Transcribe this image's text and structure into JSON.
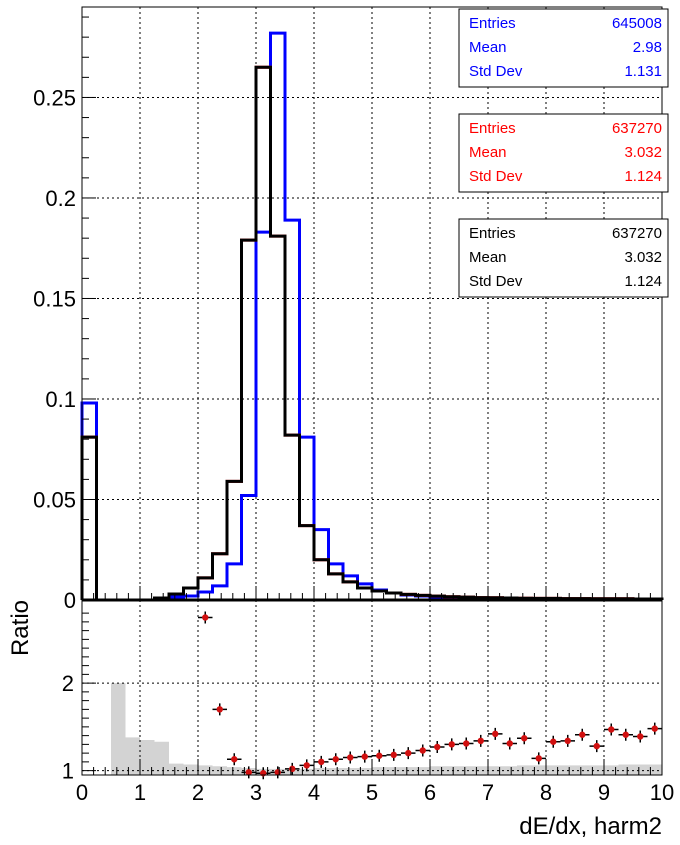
{
  "chart_data": [
    {
      "type": "step-histogram",
      "panel": "top",
      "x_range": [
        0,
        10
      ],
      "y_range": [
        0,
        0.295
      ],
      "y_ticks": [
        "0",
        "0.05",
        "0.1",
        "0.15",
        "0.2",
        "0.25"
      ],
      "y_tick_values": [
        0,
        0.05,
        0.1,
        0.15,
        0.2,
        0.25
      ],
      "bin_width": 0.25,
      "grid": true,
      "series": [
        {
          "color": "#0000ff",
          "values": [
            0.098,
            0.0,
            0.0,
            0.0,
            0.0,
            0.0005,
            0.0015,
            0.002,
            0.004,
            0.007,
            0.018,
            0.052,
            0.183,
            0.282,
            0.189,
            0.081,
            0.035,
            0.018,
            0.012,
            0.008,
            0.005,
            0.0035,
            0.0025,
            0.002,
            0.0015,
            0.0012,
            0.001,
            0.0008,
            0.0007,
            0.0006,
            0.0005,
            0.0004,
            0.0004,
            0.0003,
            0.0003,
            0.0003,
            0.0002,
            0.0002,
            0.0002,
            0.0002
          ],
          "stats": {
            "label_entries": "Entries",
            "label_mean": "Mean",
            "label_std": "Std Dev",
            "entries": "645008",
            "mean": "2.98",
            "std": "1.131"
          }
        },
        {
          "color": "#ff0000",
          "values": [
            0.081,
            0.0,
            0.0,
            0.0,
            0.0,
            0.001,
            0.003,
            0.006,
            0.011,
            0.023,
            0.059,
            0.179,
            0.265,
            0.181,
            0.082,
            0.037,
            0.02,
            0.013,
            0.009,
            0.006,
            0.0045,
            0.0035,
            0.0028,
            0.0023,
            0.0019,
            0.0016,
            0.0014,
            0.0012,
            0.0011,
            0.001,
            0.0009,
            0.0008,
            0.0008,
            0.0007,
            0.0007,
            0.0006,
            0.0006,
            0.0006,
            0.0005,
            0.0005
          ],
          "stats": {
            "label_entries": "Entries",
            "label_mean": "Mean",
            "label_std": "Std Dev",
            "entries": "637270",
            "mean": "3.032",
            "std": "1.124"
          }
        },
        {
          "color": "#000000",
          "values": [
            0.081,
            0.0,
            0.0,
            0.0,
            0.0,
            0.001,
            0.003,
            0.006,
            0.011,
            0.023,
            0.059,
            0.179,
            0.265,
            0.181,
            0.082,
            0.037,
            0.02,
            0.013,
            0.009,
            0.006,
            0.0045,
            0.0035,
            0.0028,
            0.0023,
            0.0019,
            0.0016,
            0.0014,
            0.0012,
            0.0011,
            0.001,
            0.0009,
            0.0008,
            0.0008,
            0.0007,
            0.0007,
            0.0006,
            0.0006,
            0.0006,
            0.0005,
            0.0005
          ],
          "stats": {
            "label_entries": "Entries",
            "label_mean": "Mean",
            "label_std": "Std Dev",
            "entries": "637270",
            "mean": "3.032",
            "std": "1.124"
          }
        }
      ]
    },
    {
      "type": "scatter",
      "panel": "bottom",
      "x_range": [
        0,
        10
      ],
      "y_range": [
        0.95,
        2.95
      ],
      "y_ticks": [
        "1",
        "2"
      ],
      "y_tick_values": [
        1,
        2
      ],
      "x_ticks": [
        "0",
        "1",
        "2",
        "3",
        "4",
        "5",
        "6",
        "7",
        "8",
        "9",
        "10"
      ],
      "ylabel": "Ratio",
      "xlabel": "dE/dx, harm2",
      "grid": true,
      "band_color": "#d3d3d3",
      "marker_color": "#d11010",
      "band": {
        "x": [
          0.5,
          0.75,
          1.0,
          1.25,
          1.5,
          1.75,
          2.0,
          2.25,
          2.5,
          2.75,
          3.0,
          3.25,
          3.5,
          3.75,
          4.0,
          4.25,
          4.5,
          4.75,
          5.0,
          5.25,
          5.5,
          5.75,
          6.0,
          6.25,
          6.5,
          6.75,
          7.0,
          7.25,
          7.5,
          7.75,
          8.0,
          8.25,
          8.5,
          8.75,
          9.0,
          9.25,
          9.5,
          9.75
        ],
        "values": [
          2.0,
          1.38,
          1.35,
          1.33,
          1.08,
          1.07,
          1.06,
          1.05,
          1.04,
          1.03,
          1.02,
          1.02,
          1.02,
          1.02,
          1.03,
          1.03,
          1.03,
          1.03,
          1.04,
          1.04,
          1.04,
          1.04,
          1.05,
          1.05,
          1.05,
          1.05,
          1.05,
          1.05,
          1.06,
          1.06,
          1.06,
          1.06,
          1.06,
          1.06,
          1.06,
          1.07,
          1.07,
          1.07
        ]
      },
      "points": {
        "x": [
          2.125,
          2.375,
          2.625,
          2.875,
          3.125,
          3.375,
          3.625,
          3.875,
          4.125,
          4.375,
          4.625,
          4.875,
          5.125,
          5.375,
          5.625,
          5.875,
          6.125,
          6.375,
          6.625,
          6.875,
          7.125,
          7.375,
          7.625,
          7.875,
          8.125,
          8.375,
          8.625,
          8.875,
          9.125,
          9.375,
          9.625,
          9.875
        ],
        "y": [
          2.75,
          1.7,
          1.13,
          0.98,
          0.97,
          0.98,
          1.02,
          1.06,
          1.1,
          1.13,
          1.15,
          1.16,
          1.17,
          1.18,
          1.2,
          1.23,
          1.27,
          1.3,
          1.31,
          1.34,
          1.42,
          1.31,
          1.37,
          1.14,
          1.33,
          1.34,
          1.41,
          1.28,
          1.47,
          1.41,
          1.39,
          1.48
        ]
      }
    }
  ]
}
